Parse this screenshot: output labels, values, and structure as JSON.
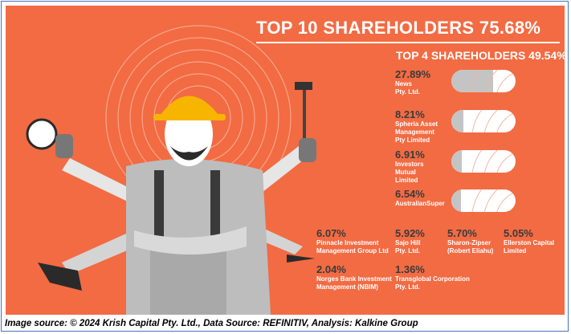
{
  "title": "TOP 10 SHAREHOLDERS 75.68%",
  "subtitle": "TOP 4 SHAREHOLDERS 49.54%",
  "top4": [
    {
      "pct": "27.89%",
      "value": 27.89,
      "name": [
        "News",
        "Pty. Ltd."
      ]
    },
    {
      "pct": "8.21%",
      "value": 8.21,
      "name": [
        "Spheria Asset",
        "Management",
        "Pty Limited"
      ]
    },
    {
      "pct": "6.91%",
      "value": 6.91,
      "name": [
        "Investors",
        "Mutual",
        "Limited"
      ]
    },
    {
      "pct": "6.54%",
      "value": 6.54,
      "name": [
        "AustralianSuper"
      ]
    }
  ],
  "others": [
    {
      "pct": "6.07%",
      "name": [
        "Pinnacle Investment",
        "Management Group Ltd"
      ]
    },
    {
      "pct": "5.92%",
      "name": [
        "Sajo Hill",
        "Pty. Ltd."
      ]
    },
    {
      "pct": "5.70%",
      "name": [
        "Sharon-Zipser",
        "(Robert Eliahu)"
      ]
    },
    {
      "pct": "5.05%",
      "name": [
        "Ellerston Capital",
        "Limited"
      ]
    },
    {
      "pct": "2.04%",
      "name": [
        "Norges Bank Investment",
        "Management (NBIM)"
      ]
    },
    {
      "pct": "1.36%",
      "name": [
        "Transglobal Corporation",
        "Pty. Ltd."
      ]
    }
  ],
  "footer": "Image source: © 2024 Krish Capital Pty. Ltd., Data Source: REFINITIV, Analysis: Kalkine Group",
  "colors": {
    "background": "#f26b43",
    "bar_fill": "#c4c4c4",
    "text_dark": "#3b3b3b"
  }
}
